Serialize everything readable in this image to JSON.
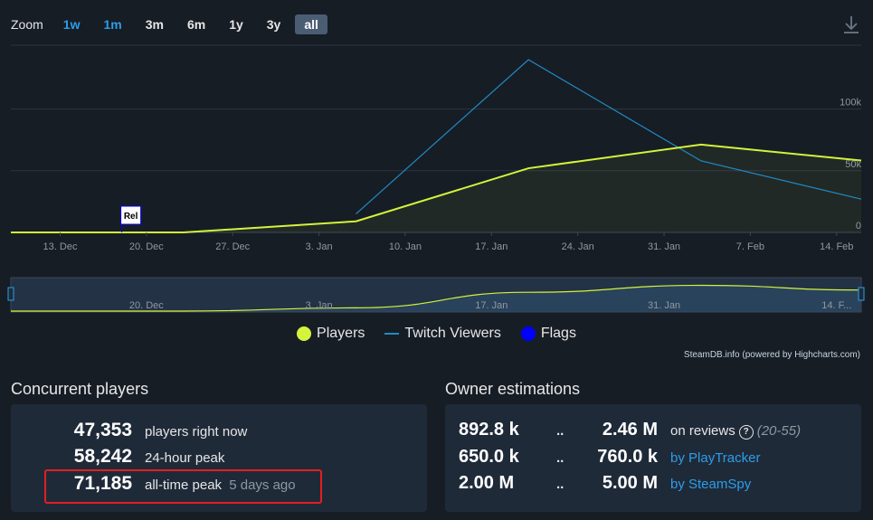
{
  "zoom": {
    "label": "Zoom",
    "buttons": [
      "1w",
      "1m",
      "3m",
      "6m",
      "1y",
      "3y",
      "all"
    ],
    "active": "all"
  },
  "chart_data": {
    "type": "line",
    "x_unit": "date",
    "x_ticks": [
      "13. Dec",
      "20. Dec",
      "27. Dec",
      "3. Jan",
      "10. Jan",
      "17. Jan",
      "24. Jan",
      "31. Jan",
      "7. Feb",
      "14. Feb"
    ],
    "y_ticks": [
      "0",
      "50k",
      "100k"
    ],
    "ylim": [
      0,
      140000
    ],
    "grid": true,
    "series": [
      {
        "name": "Players",
        "color": "#d4f33c",
        "points": [
          {
            "x": "2023-12-09",
            "y": 0
          },
          {
            "x": "2023-12-23",
            "y": 0
          },
          {
            "x": "2024-01-06",
            "y": 9000
          },
          {
            "x": "2024-01-20",
            "y": 52000
          },
          {
            "x": "2024-02-03",
            "y": 71185
          },
          {
            "x": "2024-02-16",
            "y": 58242
          }
        ]
      },
      {
        "name": "Twitch Viewers",
        "color": "#1f8bc4",
        "points": [
          {
            "x": "2024-01-06",
            "y": 15000
          },
          {
            "x": "2024-01-20",
            "y": 140000
          },
          {
            "x": "2024-02-03",
            "y": 58000
          },
          {
            "x": "2024-02-16",
            "y": 27000
          }
        ]
      }
    ],
    "flags": [
      {
        "label": "Rel",
        "x": "2023-12-18"
      }
    ],
    "navigator_labels": [
      "20. Dec",
      "3. Jan",
      "17. Jan",
      "31. Jan",
      "14. F..."
    ],
    "legend": [
      {
        "name": "Players",
        "color": "#d4f33c",
        "shape": "dot"
      },
      {
        "name": "Twitch Viewers",
        "color": "#1f8bc4",
        "shape": "dash"
      },
      {
        "name": "Flags",
        "color": "#0000ff",
        "shape": "dot"
      }
    ],
    "credits": "SteamDB.info (powered by Highcharts.com)"
  },
  "concurrent": {
    "title": "Concurrent players",
    "rows": [
      {
        "value": "47,353",
        "label": "players right now",
        "extra": ""
      },
      {
        "value": "58,242",
        "label": "24-hour peak",
        "extra": ""
      },
      {
        "value": "71,185",
        "label": "all-time peak",
        "extra": "5 days ago"
      }
    ]
  },
  "owners": {
    "title": "Owner estimations",
    "rows": [
      {
        "low": "892.8 k",
        "sep": "..",
        "high": "2.46 M",
        "text": "on reviews",
        "range": "(20-55)",
        "link": ""
      },
      {
        "low": "650.0 k",
        "sep": "..",
        "high": "760.0 k",
        "text": "",
        "range": "",
        "link": "by PlayTracker"
      },
      {
        "low": "2.00 M",
        "sep": "..",
        "high": "5.00 M",
        "text": "",
        "range": "",
        "link": "by SteamSpy"
      }
    ]
  }
}
